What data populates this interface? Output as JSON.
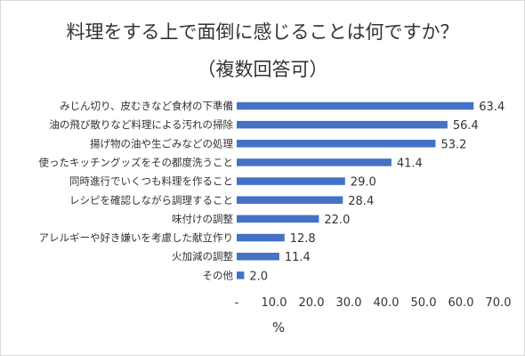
{
  "chart_data": {
    "type": "bar",
    "orientation": "horizontal",
    "title": "料理をする上で面倒に感じることは何ですか？",
    "subtitle": "（複数回答可）",
    "xlabel": "%",
    "categories": [
      "みじん切り、皮むきなど食材の下準備",
      "油の飛び散りなど料理による汚れの掃除",
      "揚げ物の油や生ごみなどの処理",
      "使ったキッチングッズをその都度洗うこと",
      "同時進行でいくつも料理を作ること",
      "レシピを確認しながら調理すること",
      "味付けの調整",
      "アレルギーや好き嫌いを考慮した献立作り",
      "火加減の調整",
      "その他"
    ],
    "values": [
      63.4,
      56.4,
      53.2,
      41.4,
      29.0,
      28.4,
      22.0,
      12.8,
      11.4,
      2.0
    ],
    "value_labels": [
      "63.4",
      "56.4",
      "53.2",
      "41.4",
      "29.0",
      "28.4",
      "22.0",
      "12.8",
      "11.4",
      "2.0"
    ],
    "xlim": [
      0,
      70
    ],
    "tick_labels": [
      "-",
      "10.0",
      "20.0",
      "30.0",
      "40.0",
      "50.0",
      "60.0",
      "70.0"
    ],
    "grid": false,
    "legend": "none",
    "bar_color": "#4472c4"
  }
}
